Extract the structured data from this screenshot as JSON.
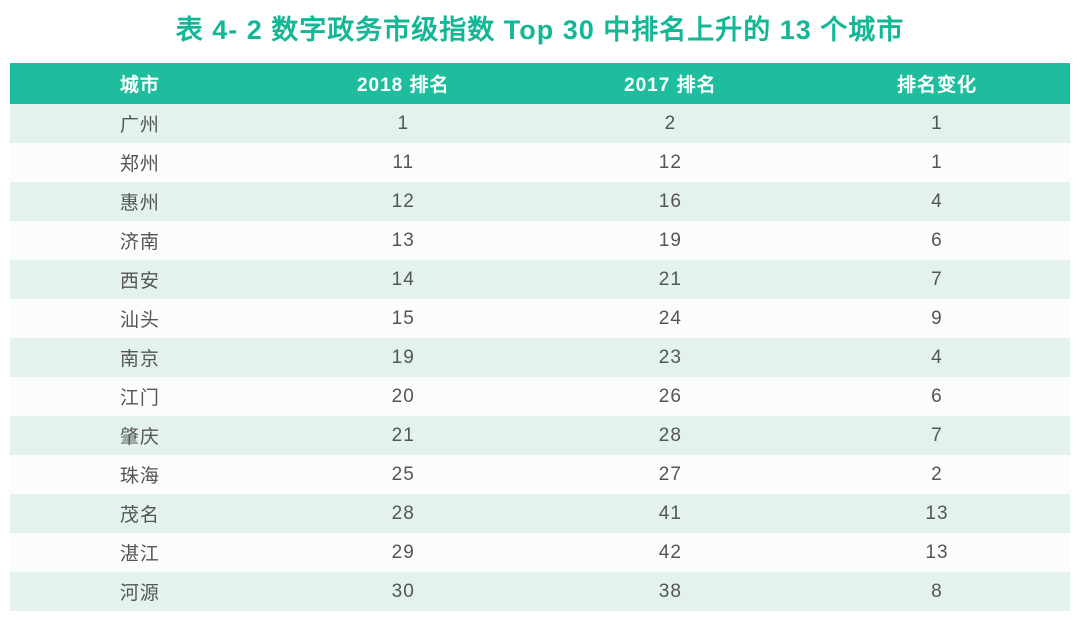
{
  "title": "表 4- 2 数字政务市级指数 Top 30 中排名上升的 13 个城市",
  "colors": {
    "accent": "#14b795",
    "header_bg": "#1ebd9e",
    "header_text": "#ffffff",
    "row_alt_bg": "#e3f2ee",
    "row_bg": "#fbfcfc",
    "cell_text": "#555555"
  },
  "chart_data": {
    "type": "table",
    "title": "表 4- 2 数字政务市级指数 Top 30 中排名上升的 13 个城市",
    "columns": [
      "城市",
      "2018 排名",
      "2017 排名",
      "排名变化"
    ],
    "rows": [
      [
        "广州",
        "1",
        "2",
        "1"
      ],
      [
        "郑州",
        "11",
        "12",
        "1"
      ],
      [
        "惠州",
        "12",
        "16",
        "4"
      ],
      [
        "济南",
        "13",
        "19",
        "6"
      ],
      [
        "西安",
        "14",
        "21",
        "7"
      ],
      [
        "汕头",
        "15",
        "24",
        "9"
      ],
      [
        "南京",
        "19",
        "23",
        "4"
      ],
      [
        "江门",
        "20",
        "26",
        "6"
      ],
      [
        "肇庆",
        "21",
        "28",
        "7"
      ],
      [
        "珠海",
        "25",
        "27",
        "2"
      ],
      [
        "茂名",
        "28",
        "41",
        "13"
      ],
      [
        "湛江",
        "29",
        "42",
        "13"
      ],
      [
        "河源",
        "30",
        "38",
        "8"
      ]
    ]
  }
}
